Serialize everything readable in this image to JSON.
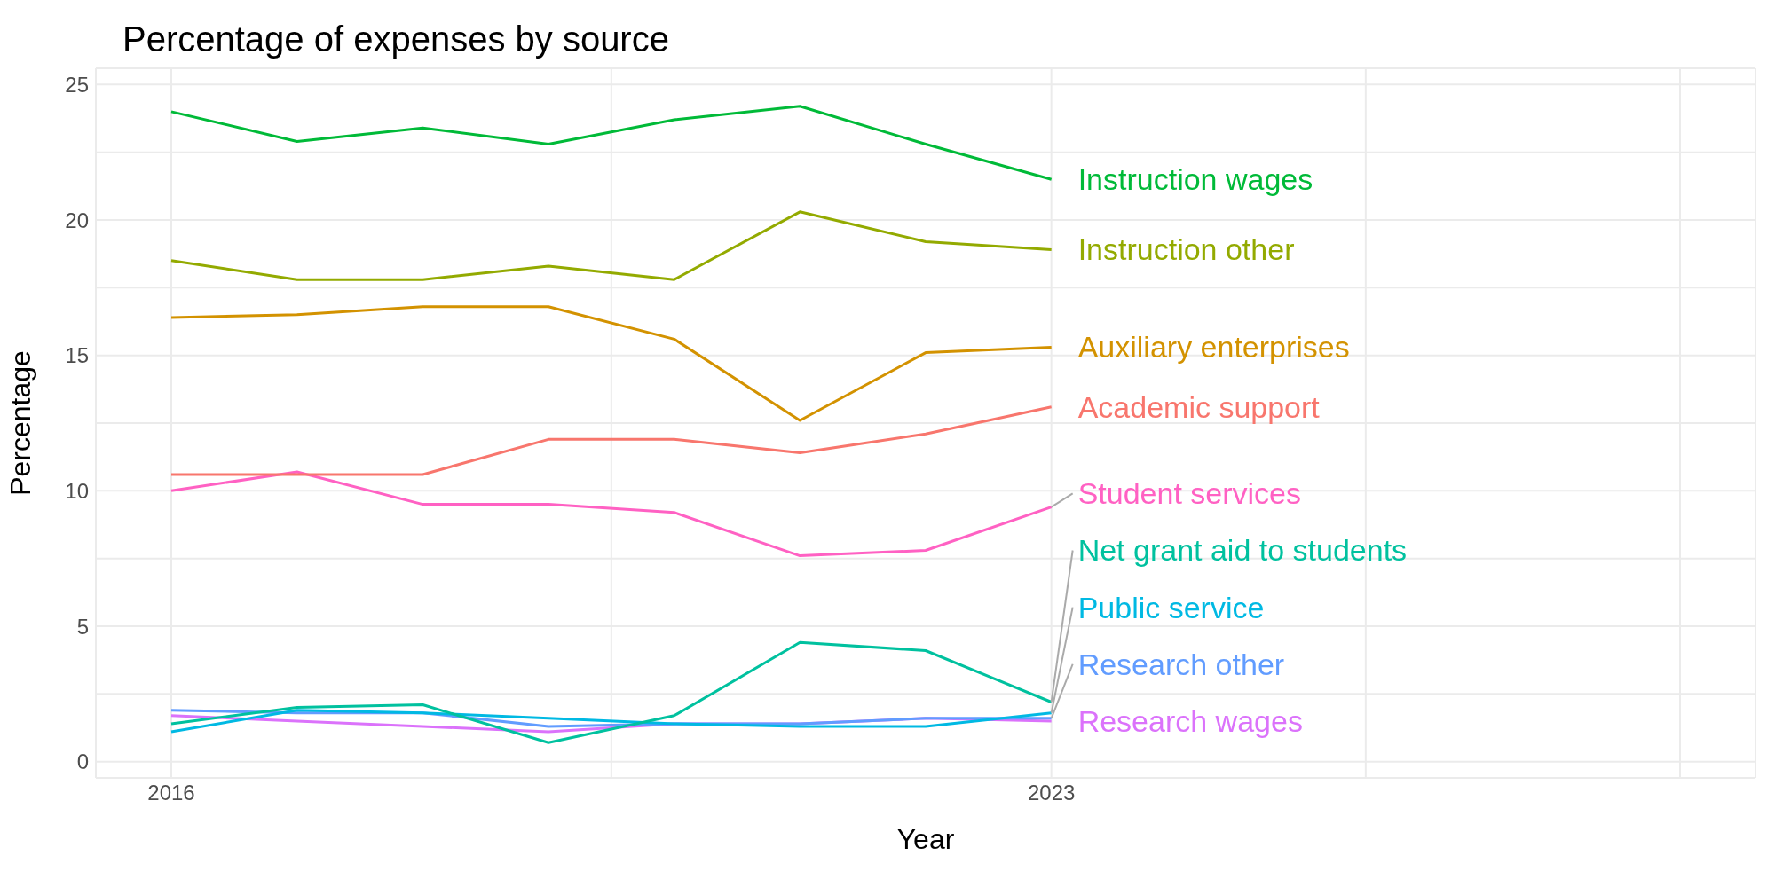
{
  "chart_data": {
    "type": "line",
    "title": "Percentage of expenses by source",
    "xlabel": "Year",
    "ylabel": "Percentage",
    "x": [
      2016,
      2017,
      2018,
      2019,
      2020,
      2021,
      2022,
      2023
    ],
    "xlim": [
      2015.4,
      2028.6
    ],
    "xticks": [
      2016,
      {
        "value": 2019.5,
        "label": null
      },
      2023,
      {
        "value": 2025.5,
        "label": null
      },
      {
        "value": 2028,
        "label": null
      }
    ],
    "ylim": [
      -0.6,
      25.6
    ],
    "yticks": [
      0,
      {
        "value": 2.5,
        "label": null
      },
      5,
      {
        "value": 7.5,
        "label": null
      },
      10,
      {
        "value": 12.5,
        "label": null
      },
      15,
      {
        "value": 17.5,
        "label": null
      },
      20,
      {
        "value": 22.5,
        "label": null
      },
      25
    ],
    "grid": true,
    "legend": false,
    "marker": "none",
    "line_style": "solid",
    "series": [
      {
        "name": "Academic support",
        "color": "#f8766d",
        "values": [
          10.6,
          10.6,
          10.6,
          11.9,
          11.9,
          11.4,
          12.1,
          13.1
        ]
      },
      {
        "name": "Auxiliary enterprises",
        "color": "#d39200",
        "values": [
          16.4,
          16.5,
          16.8,
          16.8,
          15.6,
          12.6,
          15.1,
          15.3
        ]
      },
      {
        "name": "Instruction other",
        "color": "#93aa00",
        "values": [
          18.5,
          17.8,
          17.8,
          18.3,
          17.8,
          20.3,
          19.2,
          18.9
        ]
      },
      {
        "name": "Instruction wages",
        "color": "#00ba38",
        "values": [
          24.0,
          22.9,
          23.4,
          22.8,
          23.7,
          24.2,
          22.8,
          21.5
        ]
      },
      {
        "name": "Net grant aid to students",
        "color": "#00c19f",
        "values": [
          1.4,
          2.0,
          2.1,
          0.7,
          1.7,
          4.4,
          4.1,
          2.2
        ]
      },
      {
        "name": "Public service",
        "color": "#00b9e3",
        "values": [
          1.1,
          1.9,
          1.8,
          1.6,
          1.4,
          1.3,
          1.3,
          1.8
        ]
      },
      {
        "name": "Research other",
        "color": "#619cff",
        "values": [
          1.9,
          1.8,
          1.8,
          1.3,
          1.4,
          1.4,
          1.6,
          1.6
        ]
      },
      {
        "name": "Research wages",
        "color": "#db72fb",
        "values": [
          1.7,
          1.5,
          1.3,
          1.1,
          1.4,
          1.4,
          1.6,
          1.5
        ]
      },
      {
        "name": "Student services",
        "color": "#ff61c3",
        "values": [
          10.0,
          10.7,
          9.5,
          9.5,
          9.2,
          7.6,
          7.8,
          9.4
        ]
      }
    ]
  }
}
